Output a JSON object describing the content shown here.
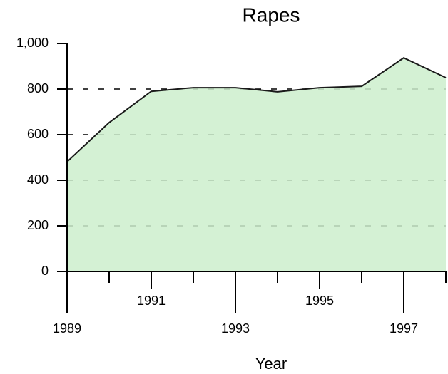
{
  "chart_data": {
    "type": "area",
    "title": "Rapes",
    "x_label": "Year",
    "x": [
      1989,
      1990,
      1991,
      1992,
      1993,
      1994,
      1995,
      1996,
      1997,
      1998
    ],
    "values": [
      481,
      653,
      790,
      806,
      806,
      788,
      806,
      812,
      937,
      850
    ],
    "color": "#1a1a1a",
    "fill_color": "#cdeecd",
    "xlim": [
      1989,
      1998
    ],
    "xticks": [
      1989,
      1991,
      1993,
      1995,
      1997
    ],
    "ylim": [
      0,
      1000
    ],
    "yticks": [
      0,
      200,
      400,
      600,
      800,
      {
        "value": 1000,
        "label": "1,000"
      }
    ],
    "grid": true
  }
}
